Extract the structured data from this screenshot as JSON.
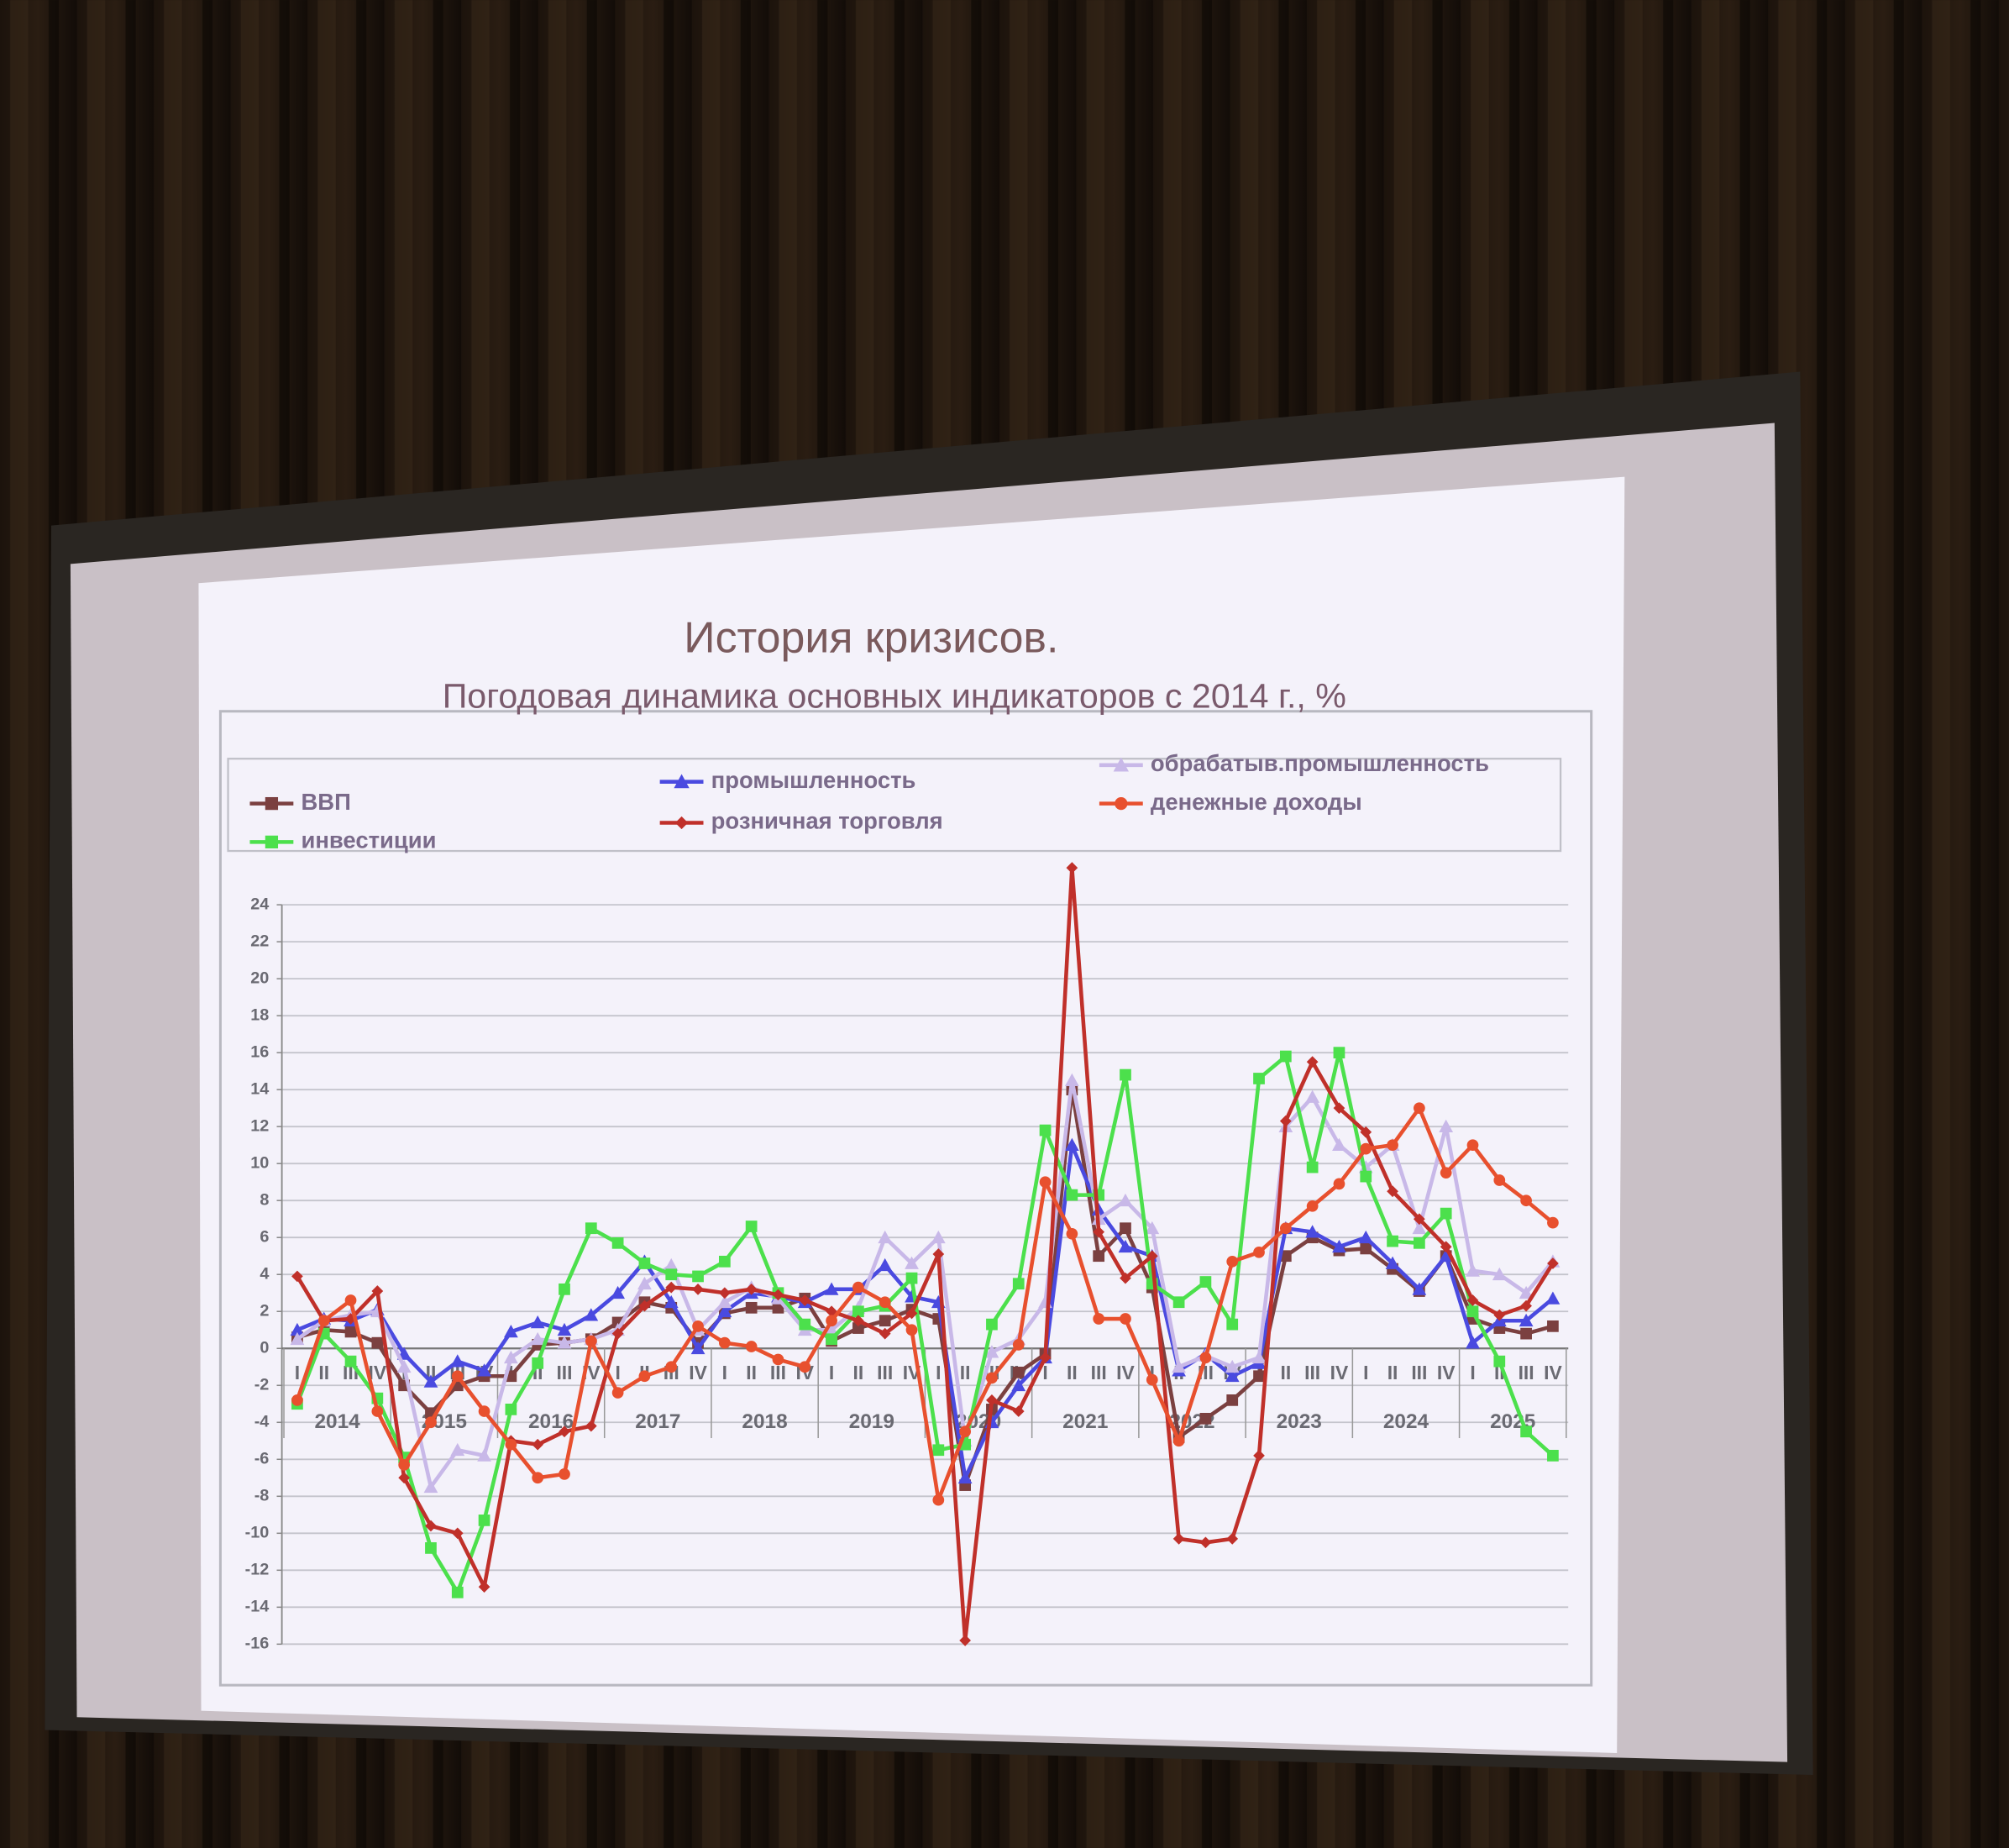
{
  "chart_data": {
    "type": "line",
    "title": "История кризисов.",
    "subtitle": "Погодовая динамика основных индикаторов с 2014 г., %",
    "categories": [
      "I",
      "II",
      "III",
      "IV",
      "I",
      "II",
      "III",
      "IV",
      "I",
      "II",
      "III",
      "IV",
      "I",
      "II",
      "III",
      "IV",
      "I",
      "II",
      "III",
      "IV",
      "I",
      "II",
      "III",
      "IV",
      "I",
      "II",
      "III",
      "IV",
      "I",
      "II",
      "III",
      "IV",
      "I",
      "II",
      "III",
      "IV",
      "I",
      "II",
      "III",
      "IV",
      "I",
      "II",
      "III",
      "IV",
      "I",
      "II",
      "III",
      "IV"
    ],
    "year_labels": [
      "2014",
      "2015",
      "2016",
      "2017",
      "2018",
      "2019",
      "2020",
      "2021",
      "2022",
      "2023",
      "2024",
      "2025"
    ],
    "ylim": [
      -16,
      24
    ],
    "yticks": [
      -16,
      -14,
      -12,
      -10,
      -8,
      -6,
      -4,
      -2,
      0,
      2,
      4,
      6,
      8,
      10,
      12,
      14,
      16,
      18,
      20,
      22,
      24
    ],
    "grid": true,
    "series": [
      {
        "name": "ВВП",
        "color": "#7b4040",
        "marker": "square",
        "values": [
          0.6,
          1.0,
          0.9,
          0.3,
          -2.0,
          -3.5,
          -2.0,
          -1.5,
          -1.5,
          0.2,
          0.3,
          0.5,
          1.4,
          2.5,
          2.2,
          0.3,
          1.9,
          2.2,
          2.2,
          2.7,
          0.4,
          1.1,
          1.5,
          2.1,
          1.6,
          -7.4,
          -3.3,
          -1.3,
          -0.3,
          14.0,
          5.0,
          6.5,
          3.3,
          -4.8,
          -3.8,
          -2.8,
          -1.5,
          5.0,
          6.0,
          5.3,
          5.4,
          4.3,
          3.1,
          5.0,
          1.6,
          1.1,
          0.8,
          1.2
        ]
      },
      {
        "name": "промышленность",
        "color": "#4a4ae0",
        "marker": "triangle",
        "values": [
          1.0,
          1.6,
          1.5,
          2.1,
          -0.3,
          -1.8,
          -0.7,
          -1.2,
          0.9,
          1.4,
          1.0,
          1.8,
          3.0,
          4.7,
          2.5,
          0.0,
          2.0,
          3.0,
          2.8,
          2.5,
          3.2,
          3.2,
          4.5,
          2.8,
          2.5,
          -7.0,
          -4.0,
          -2.0,
          -0.5,
          11.0,
          7.5,
          5.5,
          5.0,
          -1.2,
          -0.3,
          -1.5,
          -0.8,
          6.5,
          6.3,
          5.5,
          6.0,
          4.6,
          3.2,
          5.0,
          0.3,
          1.5,
          1.5,
          2.7
        ]
      },
      {
        "name": "обрабатыв.промышленность",
        "color": "#c8b8e8",
        "marker": "triangle",
        "values": [
          0.5,
          1.5,
          1.8,
          2.0,
          -1.0,
          -7.5,
          -5.5,
          -5.8,
          -0.5,
          0.5,
          0.3,
          0.5,
          1.0,
          3.5,
          4.5,
          1.0,
          2.5,
          3.3,
          2.7,
          1.0,
          1.0,
          2.2,
          6.0,
          4.6,
          6.0,
          -5.0,
          -0.2,
          0.5,
          2.5,
          14.5,
          7.0,
          8.0,
          6.5,
          -1.0,
          -0.4,
          -1.0,
          -0.5,
          12.0,
          13.6,
          11.0,
          9.8,
          11.0,
          6.5,
          12.0,
          4.2,
          4.0,
          3.0,
          4.7
        ]
      },
      {
        "name": "инвестиции",
        "color": "#4ce04c",
        "marker": "square",
        "values": [
          -3.0,
          0.8,
          -0.7,
          -2.7,
          -5.9,
          -10.8,
          -13.2,
          -9.3,
          -3.3,
          -0.8,
          3.2,
          6.5,
          5.7,
          4.6,
          4.0,
          3.9,
          4.7,
          6.6,
          3.0,
          1.3,
          0.5,
          2.0,
          2.3,
          3.8,
          -5.5,
          -5.2,
          1.3,
          3.5,
          11.8,
          8.3,
          8.3,
          14.8,
          3.5,
          2.5,
          3.6,
          1.3,
          14.6,
          15.8,
          9.8,
          16.0,
          9.3,
          5.8,
          5.7,
          7.3,
          2.0,
          -0.7,
          -4.5,
          -5.8
        ]
      },
      {
        "name": "розничная торговля",
        "color": "#c0302a",
        "marker": "diamond",
        "values": [
          3.9,
          1.5,
          1.6,
          3.1,
          -7.0,
          -9.6,
          -10.0,
          -12.9,
          -5.0,
          -5.2,
          -4.5,
          -4.2,
          0.8,
          2.3,
          3.3,
          3.2,
          3.0,
          3.2,
          2.9,
          2.6,
          2.0,
          1.5,
          0.8,
          1.9,
          5.1,
          -15.8,
          -2.8,
          -3.4,
          -0.5,
          26.0,
          6.3,
          3.8,
          5.0,
          -10.3,
          -10.5,
          -10.3,
          -5.8,
          12.3,
          15.5,
          13.0,
          11.7,
          8.5,
          7.0,
          5.5,
          2.6,
          1.8,
          2.3,
          4.6
        ]
      },
      {
        "name": "денежные доходы",
        "color": "#e8502e",
        "marker": "circle",
        "values": [
          -2.8,
          1.5,
          2.6,
          -3.4,
          -6.3,
          -4.0,
          -1.5,
          -3.4,
          -5.2,
          -7.0,
          -6.8,
          0.4,
          -2.4,
          -1.5,
          -1.0,
          1.2,
          0.3,
          0.1,
          -0.6,
          -1.0,
          1.5,
          3.3,
          2.5,
          1.0,
          -8.2,
          -4.5,
          -1.6,
          0.2,
          9.0,
          6.2,
          1.6,
          1.6,
          -1.7,
          -5.0,
          -0.5,
          4.7,
          5.2,
          6.5,
          7.7,
          8.9,
          10.8,
          11.0,
          13.0,
          9.5,
          11.0,
          9.1,
          8.0,
          6.8
        ]
      }
    ]
  }
}
